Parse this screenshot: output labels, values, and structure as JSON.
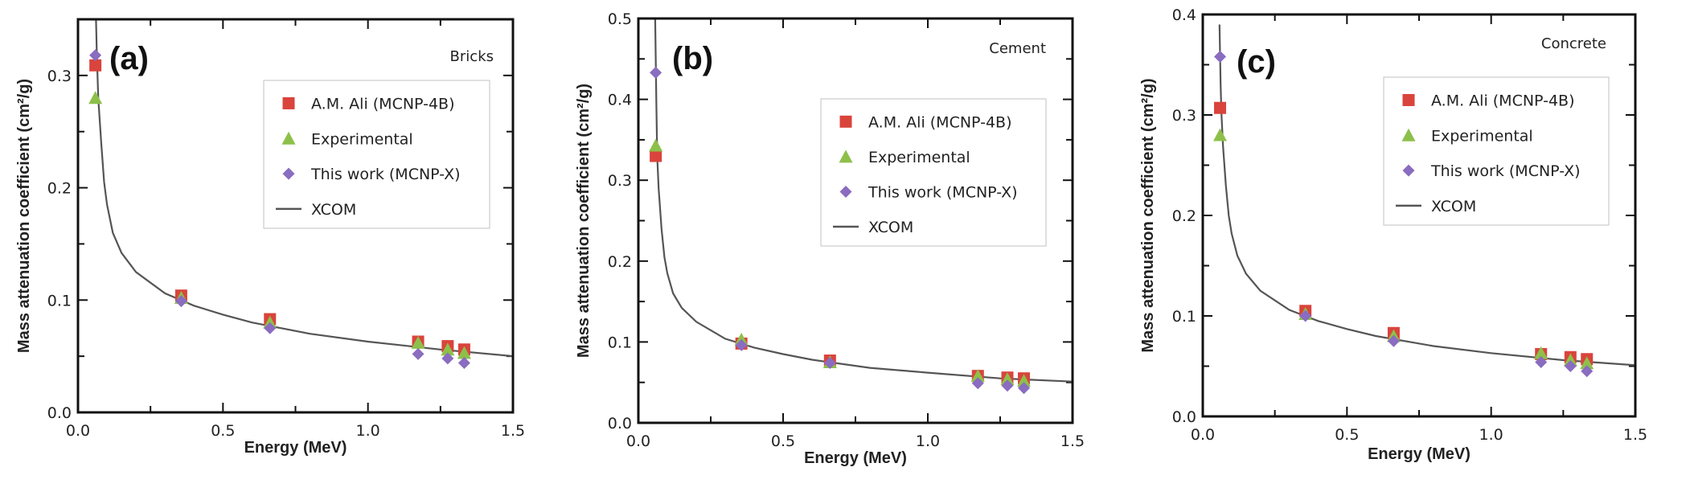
{
  "chart_data": [
    {
      "type": "scatter",
      "panel_label": "(a)",
      "title": "Bricks",
      "xlabel": "Energy (MeV)",
      "ylabel": "Mass attenuation coefficient (cm²/g)",
      "xlim": [
        0,
        1.5
      ],
      "ylim": [
        0,
        0.35
      ],
      "xticks": [
        "0.0",
        "0.5",
        "1.0",
        "1.5"
      ],
      "yticks": [
        "0.0",
        "0.1",
        "0.2",
        "0.3"
      ],
      "grid": false,
      "legend_position": "upper-right",
      "x": [
        0.06,
        0.356,
        0.662,
        1.173,
        1.275,
        1.332
      ],
      "series": [
        {
          "name": "A.M. Ali (MCNP-4B)",
          "marker": "square",
          "color": "#d9443c",
          "values": [
            0.309,
            0.104,
            0.083,
            0.063,
            0.059,
            0.056
          ]
        },
        {
          "name": "Experimental",
          "marker": "triangle",
          "color": "#8dc04a",
          "values": [
            0.28,
            0.102,
            0.08,
            0.062,
            0.056,
            0.053
          ]
        },
        {
          "name": "This work (MCNP-X)",
          "marker": "diamond",
          "color": "#8a6cc0",
          "values": [
            0.318,
            0.099,
            0.075,
            0.052,
            0.048,
            0.044
          ]
        },
        {
          "name": "XCOM",
          "marker": "line",
          "color": "#555555",
          "x": [
            0.062,
            0.065,
            0.07,
            0.08,
            0.09,
            0.1,
            0.12,
            0.15,
            0.2,
            0.3,
            0.4,
            0.5,
            0.6,
            0.8,
            1.0,
            1.25,
            1.5
          ],
          "values": [
            0.35,
            0.32,
            0.28,
            0.24,
            0.205,
            0.185,
            0.16,
            0.142,
            0.125,
            0.106,
            0.095,
            0.087,
            0.08,
            0.07,
            0.063,
            0.056,
            0.05
          ]
        }
      ]
    },
    {
      "type": "scatter",
      "panel_label": "(b)",
      "title": "Cement",
      "xlabel": "Energy (MeV)",
      "ylabel": "Mass attenuation coefficient (cm²/g)",
      "xlim": [
        0,
        1.5
      ],
      "ylim": [
        0,
        0.5
      ],
      "xticks": [
        "0.0",
        "0.5",
        "1.0",
        "1.5"
      ],
      "yticks": [
        "0.0",
        "0.1",
        "0.2",
        "0.3",
        "0.4",
        "0.5"
      ],
      "grid": false,
      "legend_position": "upper-right",
      "x": [
        0.06,
        0.356,
        0.662,
        1.173,
        1.275,
        1.332
      ],
      "series": [
        {
          "name": "A.M. Ali (MCNP-4B)",
          "marker": "square",
          "color": "#d9443c",
          "values": [
            0.33,
            0.098,
            0.077,
            0.058,
            0.056,
            0.055
          ]
        },
        {
          "name": "Experimental",
          "marker": "triangle",
          "color": "#8dc04a",
          "values": [
            0.343,
            0.103,
            0.075,
            0.058,
            0.054,
            0.052
          ]
        },
        {
          "name": "This work (MCNP-X)",
          "marker": "diamond",
          "color": "#8a6cc0",
          "values": [
            0.433,
            0.096,
            0.074,
            0.049,
            0.046,
            0.043
          ]
        },
        {
          "name": "XCOM",
          "marker": "line",
          "color": "#555555",
          "x": [
            0.058,
            0.062,
            0.065,
            0.07,
            0.08,
            0.09,
            0.1,
            0.12,
            0.15,
            0.2,
            0.3,
            0.4,
            0.5,
            0.6,
            0.8,
            1.0,
            1.25,
            1.5
          ],
          "values": [
            0.5,
            0.4,
            0.33,
            0.29,
            0.24,
            0.205,
            0.185,
            0.16,
            0.142,
            0.125,
            0.104,
            0.093,
            0.085,
            0.078,
            0.068,
            0.062,
            0.055,
            0.051
          ]
        }
      ]
    },
    {
      "type": "scatter",
      "panel_label": "(c)",
      "title": "Concrete",
      "xlabel": "Energy (MeV)",
      "ylabel": "Mass attenuation coefficient (cm²/g)",
      "xlim": [
        0,
        1.5
      ],
      "ylim": [
        0,
        0.4
      ],
      "xticks": [
        "0.0",
        "0.5",
        "1.0",
        "1.5"
      ],
      "yticks": [
        "0.0",
        "0.1",
        "0.2",
        "0.3",
        "0.4"
      ],
      "grid": false,
      "legend_position": "upper-right",
      "x": [
        0.06,
        0.356,
        0.662,
        1.173,
        1.275,
        1.332
      ],
      "series": [
        {
          "name": "A.M. Ali (MCNP-4B)",
          "marker": "square",
          "color": "#d9443c",
          "values": [
            0.307,
            0.105,
            0.083,
            0.062,
            0.059,
            0.057
          ]
        },
        {
          "name": "Experimental",
          "marker": "triangle",
          "color": "#8dc04a",
          "values": [
            0.28,
            0.102,
            0.08,
            0.063,
            0.056,
            0.053
          ]
        },
        {
          "name": "This work (MCNP-X)",
          "marker": "diamond",
          "color": "#8a6cc0",
          "values": [
            0.358,
            0.1,
            0.075,
            0.054,
            0.05,
            0.045
          ]
        },
        {
          "name": "XCOM",
          "marker": "line",
          "color": "#555555",
          "x": [
            0.058,
            0.062,
            0.065,
            0.07,
            0.08,
            0.09,
            0.1,
            0.12,
            0.15,
            0.2,
            0.3,
            0.4,
            0.5,
            0.6,
            0.8,
            1.0,
            1.25,
            1.5
          ],
          "values": [
            0.39,
            0.33,
            0.3,
            0.27,
            0.23,
            0.2,
            0.182,
            0.16,
            0.142,
            0.125,
            0.106,
            0.095,
            0.087,
            0.08,
            0.07,
            0.063,
            0.056,
            0.051
          ]
        }
      ]
    }
  ]
}
